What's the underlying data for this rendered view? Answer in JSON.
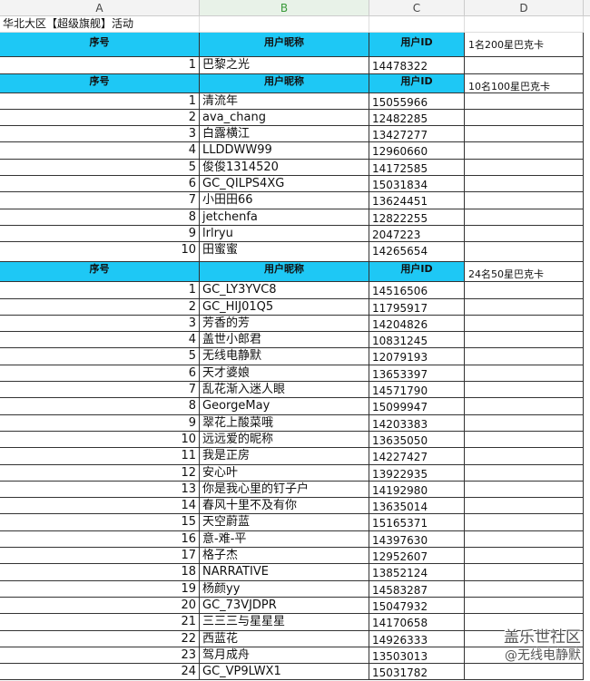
{
  "columns": [
    "A",
    "B",
    "C",
    "D"
  ],
  "title": "华北大区【超级旗舰】活动",
  "headers": {
    "seq": "序号",
    "nickname": "用户昵称",
    "uid": "用户ID"
  },
  "colors": {
    "header_bg": "#1ec8f5"
  },
  "groups": [
    {
      "prize": "1名200星巴克卡",
      "rows": [
        {
          "n": "1",
          "name": "巴黎之光",
          "id": "14478322"
        }
      ]
    },
    {
      "prize": "10名100星巴克卡",
      "rows": [
        {
          "n": "1",
          "name": "清流年",
          "id": "15055966"
        },
        {
          "n": "2",
          "name": "ava_chang",
          "id": "12482285"
        },
        {
          "n": "3",
          "name": "白露横江",
          "id": "13427277"
        },
        {
          "n": "4",
          "name": "LLDDWW99",
          "id": "12960660"
        },
        {
          "n": "5",
          "name": "俊俊1314520",
          "id": "14172585"
        },
        {
          "n": "6",
          "name": "GC_QILPS4XG",
          "id": "15031834"
        },
        {
          "n": "7",
          "name": "小田田66",
          "id": "13624451"
        },
        {
          "n": "8",
          "name": "jetchenfa",
          "id": "12822255"
        },
        {
          "n": "9",
          "name": "lrlryu",
          "id": "2047223"
        },
        {
          "n": "10",
          "name": "田蜜蜜",
          "id": "14265654"
        }
      ]
    },
    {
      "prize": "24名50星巴克卡",
      "rows": [
        {
          "n": "1",
          "name": "GC_LY3YVC8",
          "id": "14516506"
        },
        {
          "n": "2",
          "name": "GC_HIJ01Q5",
          "id": "11795917"
        },
        {
          "n": "3",
          "name": "芳香的芳",
          "id": "14204826"
        },
        {
          "n": "4",
          "name": "盖世小郎君",
          "id": "10831245"
        },
        {
          "n": "5",
          "name": "无线电静默",
          "id": "12079193"
        },
        {
          "n": "6",
          "name": "天才婆娘",
          "id": "13653397"
        },
        {
          "n": "7",
          "name": "乱花渐入迷人眼",
          "id": "14571790"
        },
        {
          "n": "8",
          "name": "GeorgeMay",
          "id": "15099947"
        },
        {
          "n": "9",
          "name": "翠花上酸菜哦",
          "id": "14203383"
        },
        {
          "n": "10",
          "name": "远远爱的昵称",
          "id": "13635050"
        },
        {
          "n": "11",
          "name": "我是正房",
          "id": "14227427"
        },
        {
          "n": "12",
          "name": "安心叶",
          "id": "13922935"
        },
        {
          "n": "13",
          "name": "你是我心里的钉子户",
          "id": "14192980"
        },
        {
          "n": "14",
          "name": "春风十里不及有你",
          "id": "13635014"
        },
        {
          "n": "15",
          "name": "天空蔚蓝",
          "id": "15165371"
        },
        {
          "n": "16",
          "name": "意-难-平",
          "id": "14397630"
        },
        {
          "n": "17",
          "name": "格子杰",
          "id": "12952607"
        },
        {
          "n": "18",
          "name": "NARRATIVE",
          "id": "13852124"
        },
        {
          "n": "19",
          "name": "杨颜yy",
          "id": "14583287"
        },
        {
          "n": "20",
          "name": "GC_73VJDPR",
          "id": "15047932"
        },
        {
          "n": "21",
          "name": "三三三与星星星",
          "id": "14170658"
        },
        {
          "n": "22",
          "name": "西蓝花",
          "id": "14926333"
        },
        {
          "n": "23",
          "name": "驾月成舟",
          "id": "13503013"
        },
        {
          "n": "24",
          "name": "GC_VP9LWX1",
          "id": "15031782"
        }
      ]
    }
  ],
  "watermark": {
    "line1": "盖乐世社区",
    "line2": "@无线电静默"
  }
}
